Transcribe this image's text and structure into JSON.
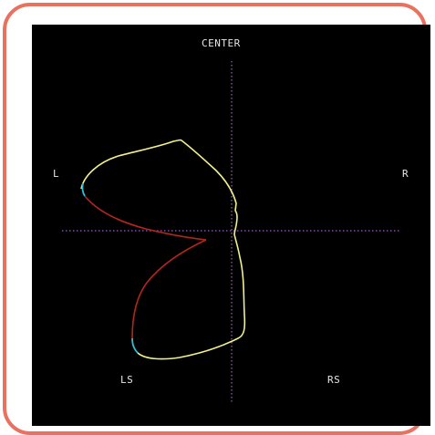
{
  "scope": {
    "labels": {
      "center": "CENTER",
      "left": "L",
      "right": "R",
      "left_surround": "LS",
      "right_surround": "RS"
    },
    "colors": {
      "background": "#000000",
      "frame": "#e8715f",
      "axis": "#9a5cc4",
      "trace_yellow": "#f2f08a",
      "trace_red": "#b3261e",
      "trace_cyan": "#33bcd6",
      "label": "#e6e6e6"
    }
  }
}
